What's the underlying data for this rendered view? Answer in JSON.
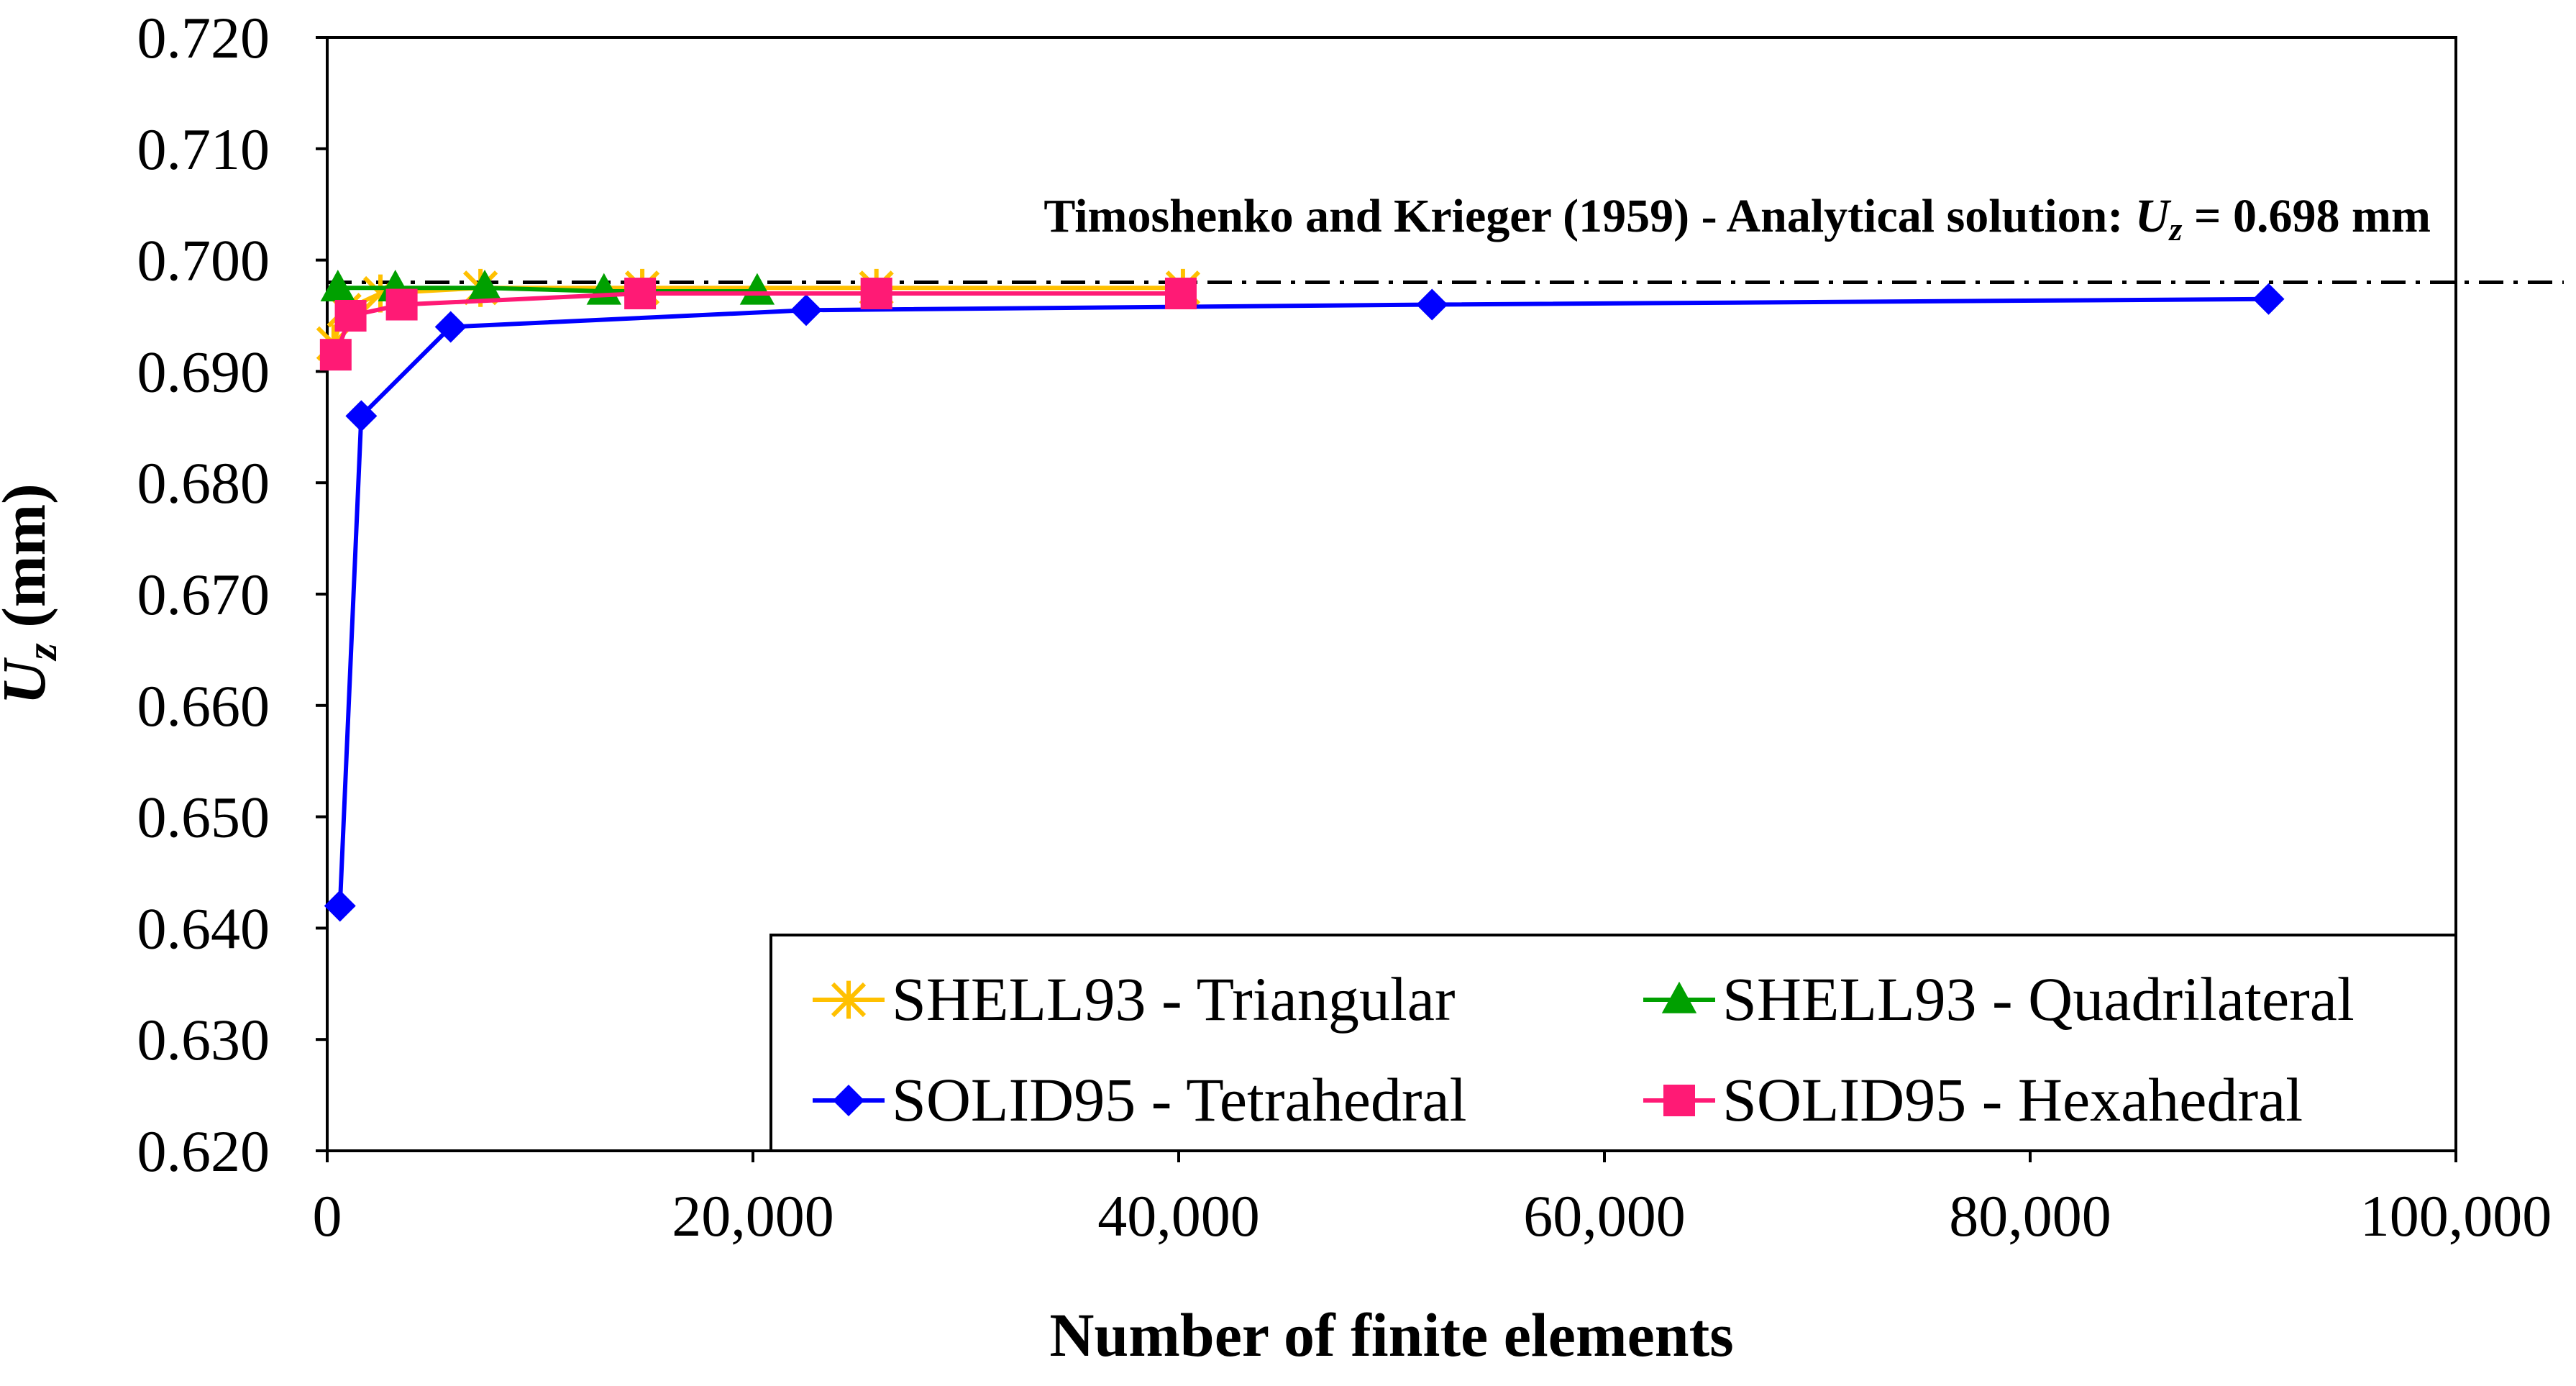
{
  "chart_data": {
    "type": "line",
    "xlabel": "Number of finite elements",
    "ylabel_main": "U",
    "ylabel_sub": "z",
    "ylabel_unit": " (mm)",
    "xlim": [
      0,
      100000
    ],
    "ylim": [
      0.62,
      0.72
    ],
    "x_ticks": [
      "0",
      "20,000",
      "40,000",
      "60,000",
      "80,000",
      "100,000"
    ],
    "x_tick_values": [
      0,
      20000,
      40000,
      60000,
      80000,
      100000
    ],
    "y_ticks": [
      "0.620",
      "0.630",
      "0.640",
      "0.650",
      "0.660",
      "0.670",
      "0.680",
      "0.690",
      "0.700",
      "0.710",
      "0.720"
    ],
    "y_tick_values": [
      0.62,
      0.63,
      0.64,
      0.65,
      0.66,
      0.67,
      0.68,
      0.69,
      0.7,
      0.71,
      0.72
    ],
    "grid": false,
    "legend_position": "bottom-right",
    "reference_line": {
      "value": 0.698,
      "label_prefix": "Timoshenko and Krieger (1959) - Analytical solution: ",
      "label_var": "U",
      "label_sub": "z",
      "label_suffix": " = 0.698 mm",
      "color": "#000000"
    },
    "series": [
      {
        "name": "SHELL93 - Triangular",
        "color": "#FFC000",
        "marker": "star",
        "x": [
          300,
          800,
          2500,
          7200,
          14800,
          25800,
          40200
        ],
        "y": [
          0.6925,
          0.6955,
          0.697,
          0.6975,
          0.6975,
          0.6975,
          0.6975
        ]
      },
      {
        "name": "SHELL93 - Quadrilateral",
        "color": "#00A000",
        "marker": "triangle",
        "x": [
          500,
          3200,
          7400,
          13000,
          20200
        ],
        "y": [
          0.6975,
          0.6975,
          0.6975,
          0.6972,
          0.6972
        ]
      },
      {
        "name": "SOLID95 - Tetrahedral",
        "color": "#0000FF",
        "marker": "diamond",
        "x": [
          600,
          1600,
          5800,
          22500,
          51900,
          91200
        ],
        "y": [
          0.642,
          0.686,
          0.694,
          0.6955,
          0.696,
          0.6965
        ]
      },
      {
        "name": "SOLID95 - Hexahedral",
        "color": "#FF1A75",
        "marker": "square",
        "x": [
          400,
          1100,
          3500,
          14700,
          25800,
          40100
        ],
        "y": [
          0.6915,
          0.695,
          0.696,
          0.697,
          0.697,
          0.697
        ]
      }
    ]
  }
}
